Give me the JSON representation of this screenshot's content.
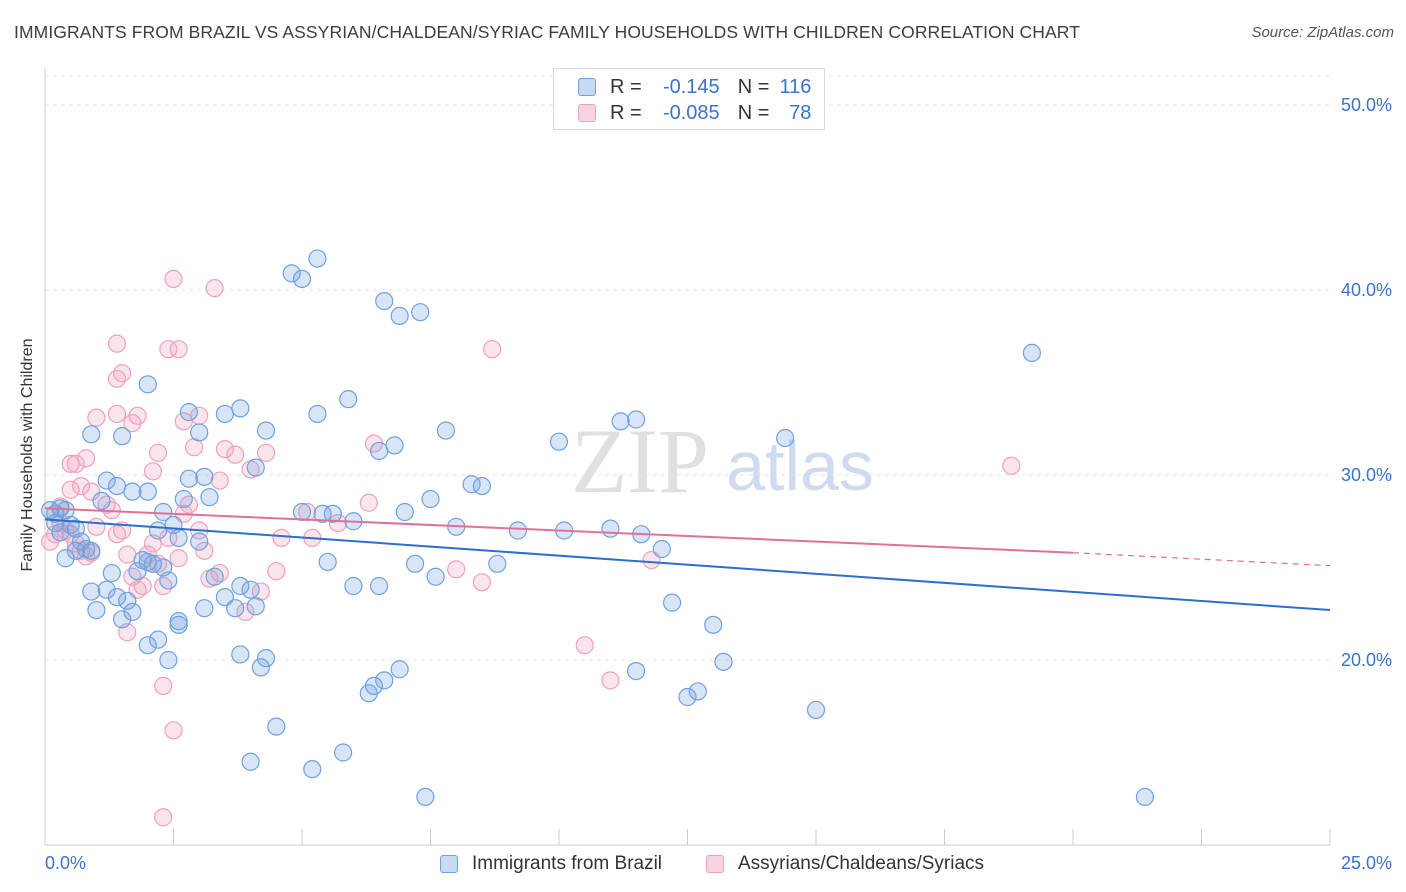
{
  "header": {
    "title": "IMMIGRANTS FROM BRAZIL VS ASSYRIAN/CHALDEAN/SYRIAC FAMILY HOUSEHOLDS WITH CHILDREN CORRELATION CHART",
    "source": "Source: ZipAtlas.com"
  },
  "watermark": {
    "zip": "ZIP",
    "atlas": "atlas"
  },
  "legend": {
    "r_label": "R =",
    "n_label": "N =",
    "series": [
      {
        "r": "-0.145",
        "n": "116"
      },
      {
        "r": "-0.085",
        "n": "78"
      }
    ]
  },
  "chart_data": {
    "type": "scatter",
    "title": "IMMIGRANTS FROM BRAZIL VS ASSYRIAN/CHALDEAN/SYRIAC FAMILY HOUSEHOLDS WITH CHILDREN CORRELATION CHART",
    "xlabel": "",
    "ylabel": "Family Households with Children",
    "xlim": [
      0,
      25
    ],
    "ylim": [
      10,
      52
    ],
    "x_tick_labels": [
      "0.0%",
      "25.0%"
    ],
    "y_ticks": [
      20,
      30,
      40,
      50
    ],
    "y_tick_labels": [
      "20.0%",
      "30.0%",
      "40.0%",
      "50.0%"
    ],
    "colors": {
      "brazil": "#6fa1e0",
      "assyrian": "#f0a0bc",
      "brazil_line": "#2c6fcd",
      "assyrian_line": "#e0709a",
      "tick_text": "#3a73c9"
    },
    "series": [
      {
        "name": "Immigrants from Brazil",
        "r": -0.145,
        "n": 116,
        "trend": {
          "x": [
            0,
            25
          ],
          "y": [
            27.6,
            22.7
          ]
        },
        "points": [
          [
            0.1,
            28.1
          ],
          [
            0.2,
            27.9
          ],
          [
            0.3,
            28.2
          ],
          [
            0.2,
            27.4
          ],
          [
            0.4,
            28.1
          ],
          [
            0.5,
            27.3
          ],
          [
            0.3,
            26.9
          ],
          [
            0.6,
            27.1
          ],
          [
            0.4,
            25.5
          ],
          [
            0.6,
            25.9
          ],
          [
            0.7,
            26.4
          ],
          [
            0.8,
            26.0
          ],
          [
            0.9,
            23.7
          ],
          [
            1.0,
            22.7
          ],
          [
            0.9,
            25.9
          ],
          [
            1.2,
            23.8
          ],
          [
            1.3,
            24.7
          ],
          [
            1.4,
            23.4
          ],
          [
            1.5,
            22.2
          ],
          [
            1.6,
            23.2
          ],
          [
            1.7,
            22.6
          ],
          [
            1.8,
            24.8
          ],
          [
            1.9,
            25.4
          ],
          [
            2.0,
            25.3
          ],
          [
            2.1,
            25.2
          ],
          [
            2.2,
            27.0
          ],
          [
            2.3,
            25.0
          ],
          [
            2.4,
            24.3
          ],
          [
            1.2,
            29.7
          ],
          [
            1.1,
            28.6
          ],
          [
            1.4,
            29.4
          ],
          [
            1.7,
            29.1
          ],
          [
            2.0,
            29.1
          ],
          [
            2.3,
            28.0
          ],
          [
            2.5,
            27.3
          ],
          [
            2.6,
            26.6
          ],
          [
            2.7,
            28.7
          ],
          [
            2.8,
            29.8
          ],
          [
            3.0,
            26.4
          ],
          [
            3.1,
            29.9
          ],
          [
            1.5,
            32.1
          ],
          [
            0.9,
            32.2
          ],
          [
            2.0,
            34.9
          ],
          [
            2.8,
            33.4
          ],
          [
            3.0,
            32.3
          ],
          [
            3.5,
            33.3
          ],
          [
            3.8,
            33.6
          ],
          [
            4.3,
            32.4
          ],
          [
            4.1,
            30.4
          ],
          [
            3.2,
            28.8
          ],
          [
            2.6,
            22.1
          ],
          [
            3.1,
            22.8
          ],
          [
            3.3,
            24.5
          ],
          [
            3.5,
            23.4
          ],
          [
            3.8,
            24.0
          ],
          [
            4.0,
            23.8
          ],
          [
            3.7,
            22.8
          ],
          [
            4.2,
            19.6
          ],
          [
            4.3,
            20.1
          ],
          [
            3.8,
            20.3
          ],
          [
            2.6,
            21.9
          ],
          [
            2.4,
            20.0
          ],
          [
            2.0,
            20.8
          ],
          [
            2.2,
            21.1
          ],
          [
            4.0,
            14.5
          ],
          [
            4.5,
            16.4
          ],
          [
            5.2,
            14.1
          ],
          [
            5.8,
            15.0
          ],
          [
            6.3,
            18.2
          ],
          [
            6.4,
            18.6
          ],
          [
            6.6,
            18.9
          ],
          [
            6.9,
            19.5
          ],
          [
            5.4,
            27.9
          ],
          [
            5.0,
            28.0
          ],
          [
            5.6,
            27.9
          ],
          [
            6.0,
            27.5
          ],
          [
            7.0,
            28.0
          ],
          [
            7.5,
            28.7
          ],
          [
            8.0,
            27.2
          ],
          [
            8.8,
            25.2
          ],
          [
            8.3,
            29.5
          ],
          [
            7.8,
            32.4
          ],
          [
            5.3,
            33.3
          ],
          [
            5.9,
            34.1
          ],
          [
            6.5,
            31.3
          ],
          [
            6.8,
            31.6
          ],
          [
            4.8,
            40.9
          ],
          [
            5.3,
            41.7
          ],
          [
            6.9,
            38.6
          ],
          [
            7.3,
            38.8
          ],
          [
            5.0,
            40.6
          ],
          [
            6.6,
            39.4
          ],
          [
            9.2,
            27.0
          ],
          [
            10.1,
            27.0
          ],
          [
            11.0,
            27.1
          ],
          [
            11.6,
            26.8
          ],
          [
            12.0,
            26.0
          ],
          [
            12.2,
            23.1
          ],
          [
            13.0,
            21.9
          ],
          [
            13.2,
            19.9
          ],
          [
            12.7,
            18.3
          ],
          [
            11.5,
            19.4
          ],
          [
            12.5,
            18.0
          ],
          [
            10.0,
            31.8
          ],
          [
            11.2,
            32.9
          ],
          [
            11.5,
            33.0
          ],
          [
            14.4,
            32.0
          ],
          [
            15.0,
            17.3
          ],
          [
            19.2,
            36.6
          ],
          [
            21.4,
            12.6
          ],
          [
            7.4,
            12.6
          ],
          [
            6.0,
            24.0
          ],
          [
            7.6,
            24.5
          ],
          [
            6.5,
            24.0
          ],
          [
            7.2,
            25.2
          ],
          [
            5.5,
            25.3
          ],
          [
            8.5,
            29.4
          ],
          [
            4.1,
            22.9
          ]
        ]
      },
      {
        "name": "Assyrians/Chaldeans/Syriacs",
        "r": -0.085,
        "n": 78,
        "trend": {
          "x": [
            0,
            20
          ],
          "y": [
            28.2,
            25.8
          ]
        },
        "trend_dashed": {
          "x": [
            20,
            25
          ],
          "y": [
            25.8,
            25.1
          ]
        },
        "points": [
          [
            0.1,
            26.4
          ],
          [
            0.2,
            26.8
          ],
          [
            0.3,
            27.4
          ],
          [
            0.3,
            28.3
          ],
          [
            0.4,
            27.0
          ],
          [
            0.5,
            26.8
          ],
          [
            0.6,
            26.3
          ],
          [
            0.7,
            25.9
          ],
          [
            0.8,
            25.6
          ],
          [
            0.9,
            25.8
          ],
          [
            1.0,
            27.2
          ],
          [
            0.5,
            30.6
          ],
          [
            0.6,
            30.6
          ],
          [
            0.5,
            29.2
          ],
          [
            0.7,
            29.4
          ],
          [
            0.9,
            29.1
          ],
          [
            0.8,
            30.9
          ],
          [
            1.2,
            28.4
          ],
          [
            1.3,
            28.1
          ],
          [
            1.4,
            26.8
          ],
          [
            1.5,
            27.0
          ],
          [
            1.6,
            25.7
          ],
          [
            1.7,
            24.5
          ],
          [
            1.8,
            23.8
          ],
          [
            1.9,
            24.0
          ],
          [
            2.0,
            25.7
          ],
          [
            2.1,
            26.3
          ],
          [
            2.2,
            25.2
          ],
          [
            2.3,
            24.0
          ],
          [
            2.4,
            26.6
          ],
          [
            2.6,
            25.5
          ],
          [
            2.7,
            27.9
          ],
          [
            2.8,
            28.4
          ],
          [
            3.0,
            27.0
          ],
          [
            3.1,
            25.9
          ],
          [
            3.2,
            24.4
          ],
          [
            3.4,
            24.7
          ],
          [
            1.0,
            33.1
          ],
          [
            1.4,
            33.3
          ],
          [
            1.7,
            32.8
          ],
          [
            1.8,
            33.2
          ],
          [
            1.4,
            37.1
          ],
          [
            1.5,
            35.5
          ],
          [
            2.6,
            36.8
          ],
          [
            2.4,
            36.8
          ],
          [
            2.7,
            32.9
          ],
          [
            3.0,
            33.2
          ],
          [
            2.1,
            30.2
          ],
          [
            2.2,
            31.2
          ],
          [
            2.9,
            31.5
          ],
          [
            3.5,
            31.4
          ],
          [
            3.7,
            31.1
          ],
          [
            3.4,
            29.7
          ],
          [
            4.3,
            31.2
          ],
          [
            4.0,
            30.3
          ],
          [
            4.6,
            26.6
          ],
          [
            5.1,
            28.0
          ],
          [
            5.2,
            26.6
          ],
          [
            5.7,
            27.4
          ],
          [
            6.3,
            28.5
          ],
          [
            6.4,
            31.7
          ],
          [
            8.0,
            24.9
          ],
          [
            8.5,
            24.2
          ],
          [
            10.5,
            20.8
          ],
          [
            11.0,
            18.9
          ],
          [
            11.8,
            25.4
          ],
          [
            2.5,
            40.6
          ],
          [
            3.3,
            40.1
          ],
          [
            8.7,
            36.8
          ],
          [
            18.8,
            30.5
          ],
          [
            2.3,
            18.6
          ],
          [
            2.5,
            16.2
          ],
          [
            2.3,
            11.5
          ],
          [
            1.6,
            21.5
          ],
          [
            3.9,
            22.6
          ],
          [
            4.2,
            23.7
          ],
          [
            4.5,
            24.8
          ],
          [
            1.4,
            35.2
          ]
        ]
      }
    ]
  },
  "bottom_legend": [
    {
      "label": "Immigrants from Brazil"
    },
    {
      "label": "Assyrians/Chaldeans/Syriacs"
    }
  ]
}
